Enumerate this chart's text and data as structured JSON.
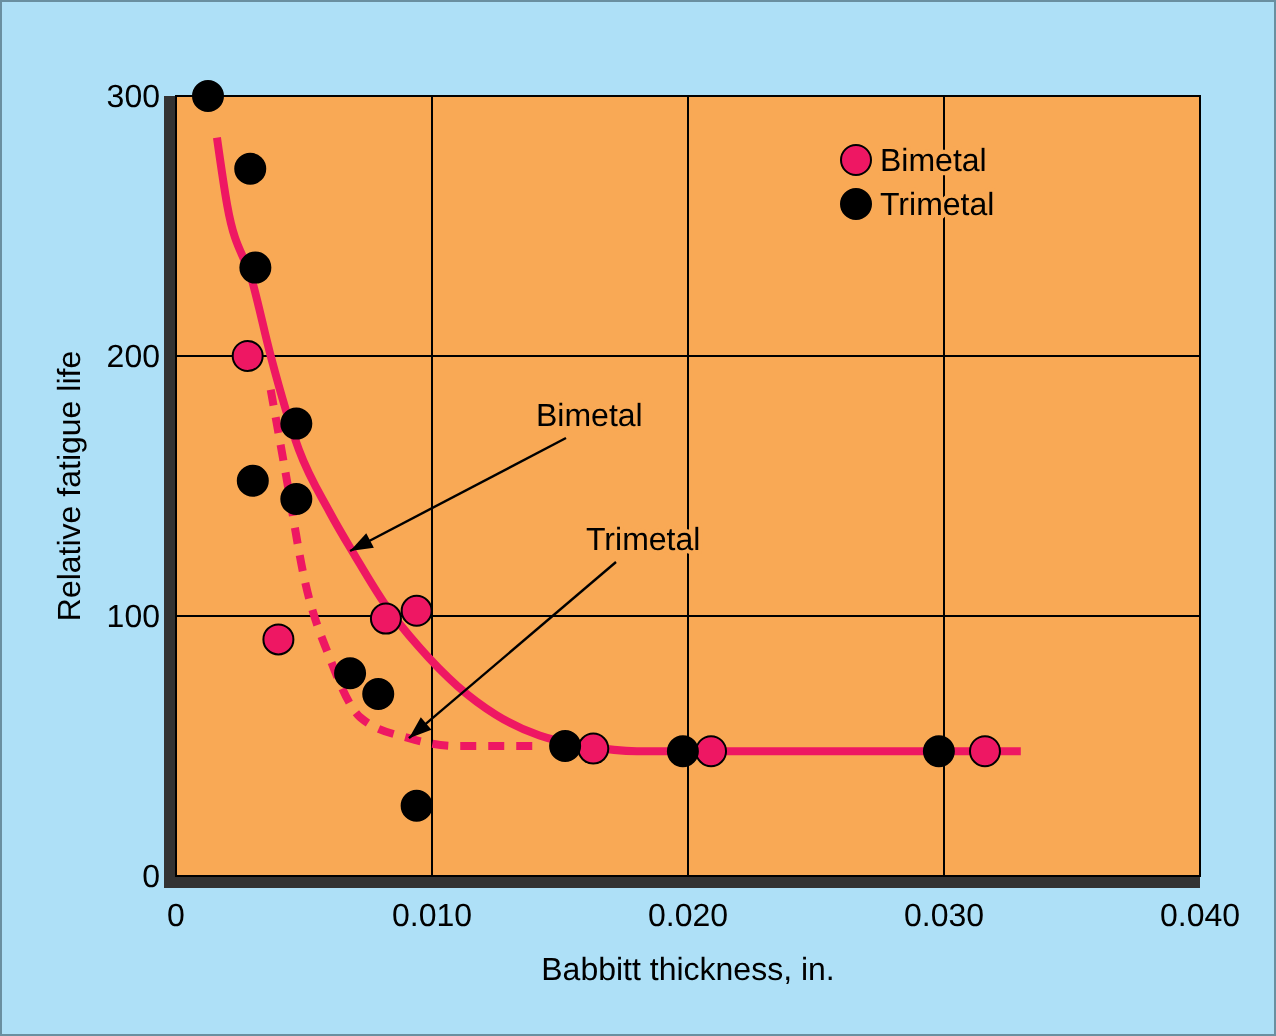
{
  "chart_data": {
    "type": "scatter",
    "xlabel": "Babbitt thickness, in.",
    "ylabel": "Relative fatigue life",
    "xlim": [
      0,
      0.04
    ],
    "ylim": [
      0,
      300
    ],
    "xticks": [
      0,
      {
        "value": 0.01,
        "label": "0.010"
      },
      {
        "value": 0.02,
        "label": "0.020"
      },
      {
        "value": 0.03,
        "label": "0.030"
      },
      {
        "value": 0.04,
        "label": "0.040"
      }
    ],
    "yticks": [
      0,
      100,
      200,
      300
    ],
    "grid": true,
    "legend": "top right",
    "marker": "circle",
    "series": [
      {
        "name": "Bimetal",
        "color": "#ee1763",
        "x": [
          0.0028,
          0.004,
          0.0082,
          0.0094,
          0.0163,
          0.0209,
          0.0316
        ],
        "values": [
          200,
          91,
          99,
          102,
          49,
          48,
          48
        ]
      },
      {
        "name": "Trimetal",
        "color": "#000000",
        "x": [
          0.00125,
          0.0029,
          0.0031,
          0.0047,
          0.003,
          0.0047,
          0.0068,
          0.0079,
          0.0094,
          0.0152,
          0.0198,
          0.0298
        ],
        "values": [
          300,
          272,
          234,
          174,
          152,
          145,
          78,
          70,
          27,
          50,
          48,
          48
        ]
      },
      {
        "type": "line",
        "color": "#ee1763",
        "line_style": "solid",
        "marker": "none",
        "x": [
          0.0016,
          0.002,
          0.003,
          0.0037,
          0.0048,
          0.006,
          0.007,
          0.0082,
          0.0095,
          0.011,
          0.0125,
          0.0142,
          0.016,
          0.018,
          0.033
        ],
        "values": [
          284,
          258,
          228,
          200,
          164,
          140,
          123,
          104,
          88,
          73,
          62,
          54,
          50,
          48,
          48
        ]
      },
      {
        "type": "line",
        "color": "#ee1763",
        "line_style": "dashed",
        "marker": "none",
        "x": [
          0.0037,
          0.0043,
          0.005,
          0.006,
          0.0072,
          0.0091,
          0.011,
          0.013,
          0.014
        ],
        "values": [
          187,
          154,
          115,
          84,
          61,
          53,
          50,
          50,
          50
        ]
      }
    ],
    "annotations": [
      {
        "text": "Bimetal",
        "x": 0.0068,
        "y": 125
      },
      {
        "text": "Trimetal",
        "x": 0.0091,
        "y": 53
      }
    ]
  }
}
